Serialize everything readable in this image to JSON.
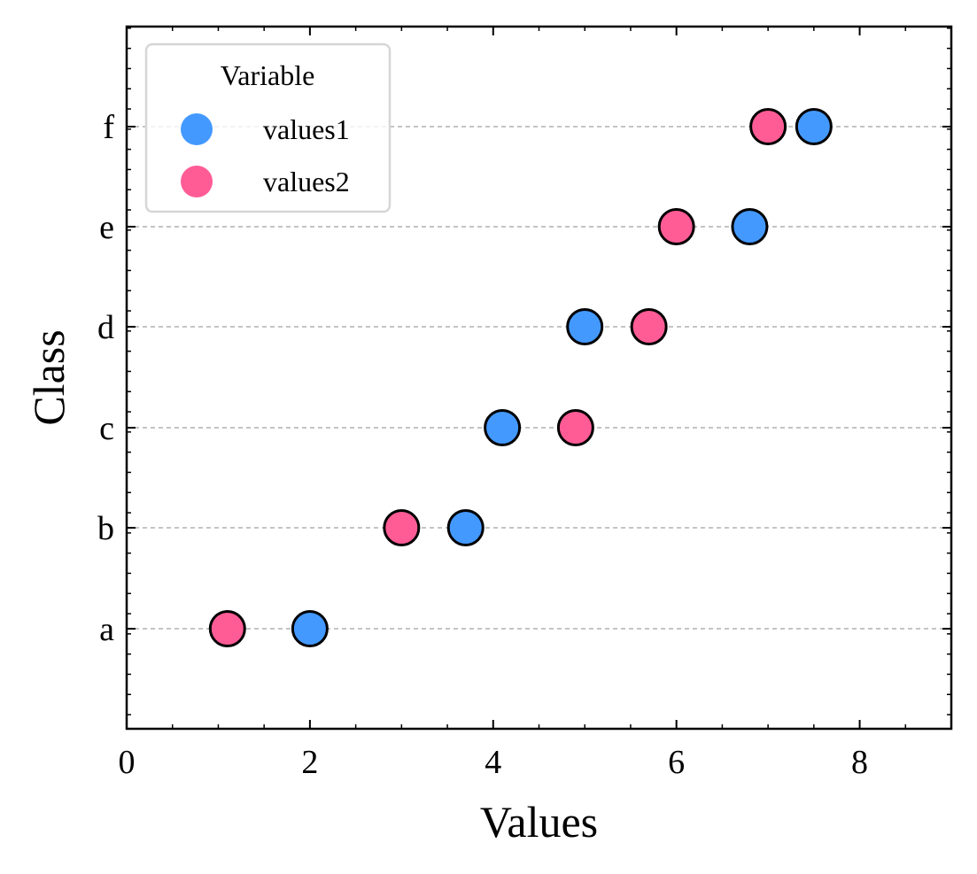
{
  "chart_data": {
    "type": "scatter",
    "xlabel": "Values",
    "ylabel": "Class",
    "xlim": [
      0,
      9
    ],
    "x_ticks": [
      "0",
      "2",
      "4",
      "6",
      "8"
    ],
    "categories": [
      "a",
      "b",
      "c",
      "d",
      "e",
      "f"
    ],
    "grid": "horizontal dashed",
    "legend": {
      "title": "Variable",
      "position": "top-left"
    },
    "series": [
      {
        "name": "values1",
        "color": "#4499ff",
        "values": [
          2.0,
          3.7,
          4.1,
          5.0,
          6.8,
          7.5
        ]
      },
      {
        "name": "values2",
        "color": "#ff5c96",
        "values": [
          1.1,
          3.0,
          4.9,
          5.7,
          6.0,
          7.0
        ]
      }
    ]
  }
}
